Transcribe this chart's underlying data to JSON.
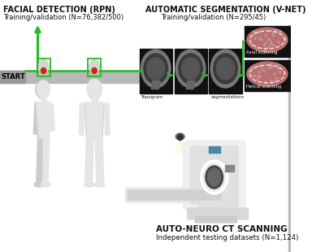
{
  "title_left": "FACIAL DETECTION (RPN)",
  "subtitle_left": "Training/validation (N=76,382/500)",
  "title_right": "AUTOMATIC SEGMENTATION (V-NET)",
  "subtitle_right": "Training/validation (N=295/45)",
  "title_bottom": "AUTO-NEURO CT SCANNING",
  "subtitle_bottom": "Independent testing datasets (N=1,124)",
  "start_label": "START",
  "bg_color": "#ffffff",
  "title_fontsize": 7.0,
  "subtitle_fontsize": 6.0,
  "green_color": "#22bb22",
  "red_dot_color": "#cc2222",
  "gray_bar_color": "#b8b8b8",
  "body_color": "#e5e5e5",
  "body_shadow": "#cccccc",
  "dark_text": "#111111",
  "scan_panel_bg": "#1a1a1a",
  "scan_image_skull": "#888888",
  "scan_image_inner": "#333333",
  "seg_panel_pink": "#c47a7a",
  "seg_panel_dark": "#111111",
  "ct_white": "#f2f2f2",
  "ct_light": "#e0e0e0",
  "ct_mid": "#cccccc",
  "ct_dark": "#aaaaaa",
  "gray_line": "#bbbbbb",
  "cam_color": "#555555",
  "beam_color": "#eeeeaa"
}
